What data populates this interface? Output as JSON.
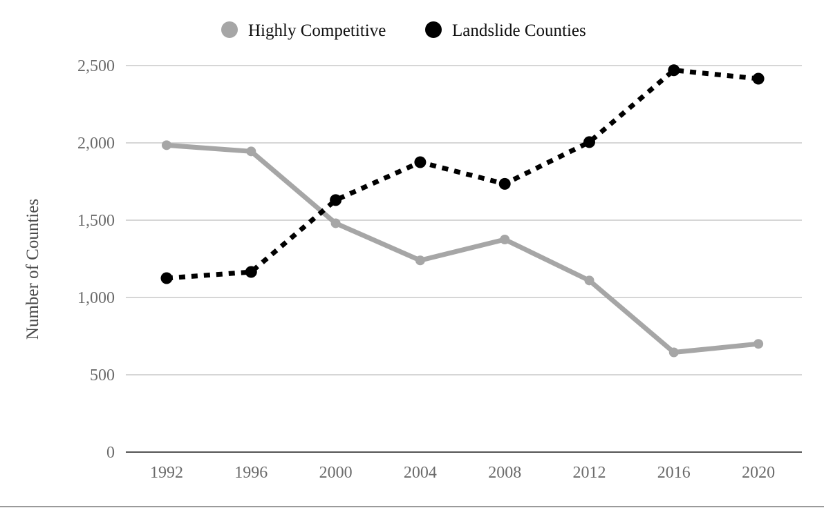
{
  "chart_data": {
    "type": "line",
    "title": "",
    "xlabel": "",
    "ylabel": "Number of Counties",
    "categories": [
      "1992",
      "1996",
      "2000",
      "2004",
      "2008",
      "2012",
      "2016",
      "2020"
    ],
    "y_ticks": [
      "0",
      "500",
      "1,000",
      "1,500",
      "2,000",
      "2,500"
    ],
    "ylim": [
      0,
      2500
    ],
    "grid": true,
    "legend_position": "top-center",
    "series": [
      {
        "name": "Highly Competitive",
        "color": "#a6a6a6",
        "line_style": "solid",
        "values": [
          1985,
          1945,
          1480,
          1240,
          1375,
          1110,
          645,
          700
        ]
      },
      {
        "name": "Landslide Counties",
        "color": "#000000",
        "line_style": "dotted",
        "values": [
          1125,
          1165,
          1630,
          1875,
          1735,
          2005,
          2470,
          2415
        ]
      }
    ]
  }
}
